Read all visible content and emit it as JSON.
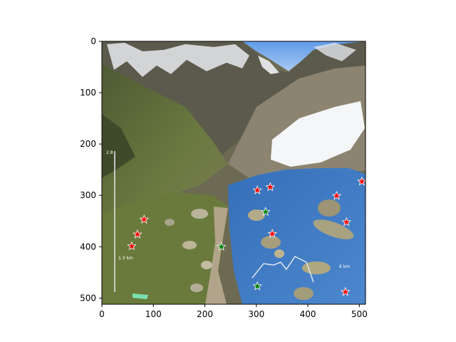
{
  "axes": {
    "x_ticks": [
      0,
      100,
      200,
      300,
      400,
      500
    ],
    "y_ticks": [
      0,
      100,
      200,
      300,
      400,
      500
    ],
    "xlim": [
      0,
      512
    ],
    "ylim": [
      512,
      0
    ]
  },
  "markers": {
    "red_color": "#ff0000",
    "green_color": "#008000",
    "red_points": [
      [
        302,
        290
      ],
      [
        327,
        284
      ],
      [
        456,
        301
      ],
      [
        505,
        273
      ],
      [
        475,
        352
      ],
      [
        331,
        375
      ],
      [
        82,
        347
      ],
      [
        69,
        376
      ],
      [
        58,
        399
      ],
      [
        473,
        488
      ]
    ],
    "green_points": [
      [
        318,
        332
      ],
      [
        232,
        400
      ],
      [
        302,
        477
      ]
    ]
  },
  "overlay_text": {
    "distance_a": "6 km",
    "distance_b": "1.3 km",
    "scale_top": "2.8"
  },
  "image": {
    "description_colors": {
      "sky": "#7aaef0",
      "water_mask": "#3a7fd0",
      "snow": "#f4f6f8",
      "grass": "#5f6e3a",
      "rock": "#8a8070"
    }
  }
}
